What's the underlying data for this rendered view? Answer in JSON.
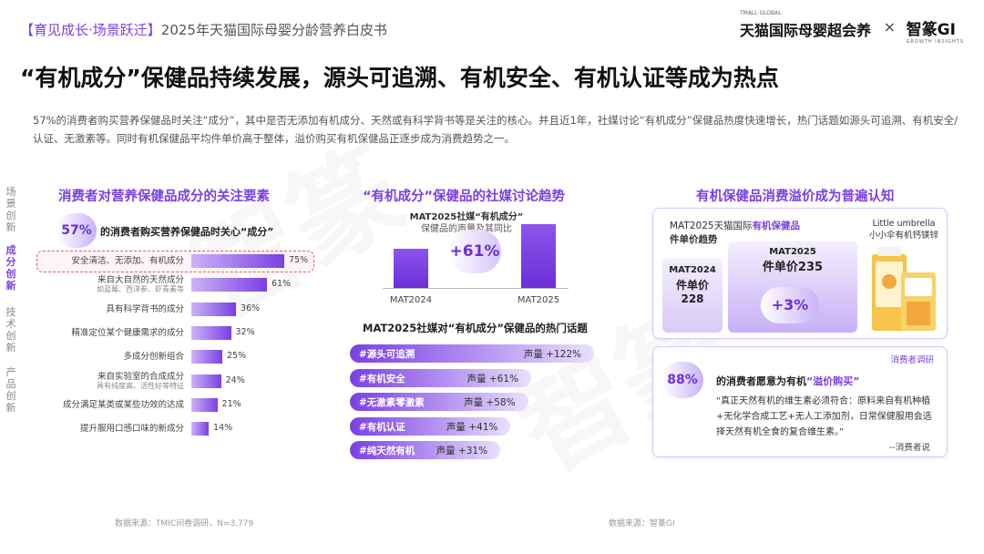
{
  "header": {
    "bracket_text": "【育见成长·场景跃迁】",
    "report_title": "2025年天猫国际母婴分龄营养白皮书",
    "brand1": "天猫国际母婴超会养",
    "brand1_small": "TMALL GLOBAL",
    "brand_sep": "×",
    "brand2": "智篆GI",
    "brand2_small": "GROWTH INSIGHTS"
  },
  "main_title": "“有机成分”保健品持续发展，源头可追溯、有机安全、有机认证等成为热点",
  "intro": "57%的消费者购买营养保健品时关注“成分”，其中是否无添加有机成分、天然或有科学背书等是关注的核心。并且近1年，社媒讨论“有机成分”保健品热度快速增长，热门话题如源头可追溯、有机安全/认证、无激素等。同时有机保健品平均件单价高于整体，溢价购买有机保健品正逐步成为消费趋势之一。",
  "sidebar": {
    "items": [
      {
        "label": "场景创新",
        "active": false
      },
      {
        "label": "成分创新",
        "active": true
      },
      {
        "label": "技术创新",
        "active": false
      },
      {
        "label": "产品创新",
        "active": false
      }
    ]
  },
  "left": {
    "title": "消费者对营养保健品成分的关注要素",
    "badge": "57%",
    "badge_text": "的消费者购买营养保健品时关心“成分”",
    "source": "数据来源：TMIC问卷调研，N=3,779"
  },
  "middle": {
    "title": "“有机成分”保健品的社媒讨论趋势",
    "chart_caption_line1": "MAT2025社媒“有机成分”",
    "chart_caption_line2": "保健品的声量及其同比",
    "growth": "+61%",
    "topic_title": "MAT2025社媒对“有机成分”保健品的热门话题",
    "source": "数据来源：智篆GI"
  },
  "right": {
    "title": "有机保健品消费溢价成为普遍认知",
    "card_line1": "MAT2025天猫国际",
    "card_highlight": "有机保健品",
    "card_line2": "件单价趋势",
    "product_name1": "Little umbrella",
    "product_name2": "小小伞有机钙镁锌",
    "step1_label": "MAT2024",
    "step1_value": "件单价",
    "step1_num": "228",
    "step2_label": "MAT2025",
    "step2_value": "件单价235",
    "step2_growth": "+3%",
    "survey_tag": "消费者调研",
    "badge": "88%",
    "badge_text_a": "的消费者愿意为有机",
    "badge_text_b": "“溢价购买”",
    "quote": "“真正天然有机的维生素必须符合：原料来自有机种植+无化学合成工艺+无人工添加剂，日常保健服用会选择天然有机全食的复合维生素。”",
    "quote_author": "--消费者说"
  },
  "chart_data": [
    {
      "type": "bar",
      "title": "消费者对营养保健品成分的关注要素",
      "orientation": "horizontal",
      "categories": [
        {
          "label": "安全清洁、无添加、有机成分",
          "sub": ""
        },
        {
          "label": "来自大自然的天然成分",
          "sub": "如蓝莓、西洋参、虾青素等"
        },
        {
          "label": "具有科学背书的成分",
          "sub": ""
        },
        {
          "label": "精准定位某个健康需求的成分",
          "sub": ""
        },
        {
          "label": "多成分创新组合",
          "sub": ""
        },
        {
          "label": "来自实验室的合成成分",
          "sub": "具有纯度高、活性好等特征"
        },
        {
          "label": "成分满足某类或某些功效的达成",
          "sub": ""
        },
        {
          "label": "提升服用口感口味的新成分",
          "sub": ""
        }
      ],
      "values": [
        75,
        61,
        36,
        32,
        25,
        24,
        21,
        14
      ],
      "value_labels": [
        "75%",
        "61%",
        "36%",
        "32%",
        "25%",
        "24%",
        "21%",
        "14%"
      ],
      "highlight_index": 0,
      "xlim": [
        0,
        75
      ]
    },
    {
      "type": "bar",
      "title": "“有机成分”保健品的社媒讨论趋势",
      "categories": [
        "MAT2024",
        "MAT2025"
      ],
      "values": [
        1,
        1.61
      ],
      "ylim": [
        0,
        1.61
      ],
      "growth": "+61%"
    },
    {
      "type": "bar",
      "title": "MAT2025社媒对“有机成分”保健品的热门话题",
      "orientation": "horizontal",
      "categories": [
        "#源头可追溯",
        "#有机安全",
        "#无激素零激素",
        "#有机认证",
        "#纯天然有机"
      ],
      "values": [
        122,
        61,
        58,
        41,
        31
      ],
      "value_labels": [
        "声量 +122%",
        "声量 +61%",
        "声量 +58%",
        "声量 +41%",
        "声量 +31%"
      ],
      "xlim": [
        0,
        122
      ]
    }
  ]
}
